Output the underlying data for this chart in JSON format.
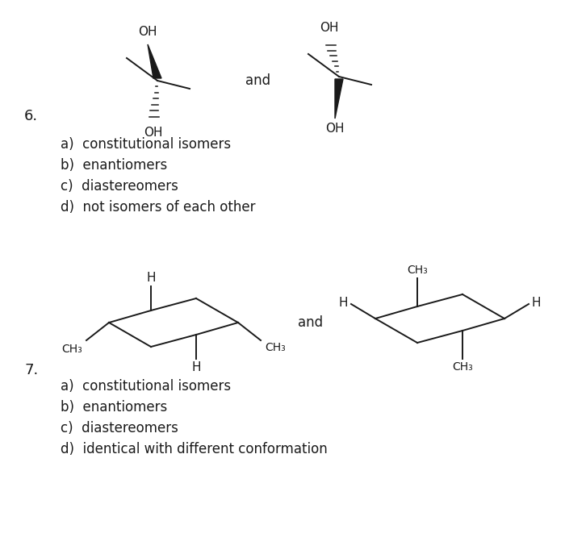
{
  "bg_color": "#ffffff",
  "text_color": "#1a1a1a",
  "question6_number": "6.",
  "question7_number": "7.",
  "and_text": "and",
  "q6_options": [
    "a)  constitutional isomers",
    "b)  enantiomers",
    "c)  diastereomers",
    "d)  not isomers of each other"
  ],
  "q7_options": [
    "a)  constitutional isomers",
    "b)  enantiomers",
    "c)  diastereomers",
    "d)  identical with different conformation"
  ],
  "font_size_options": 12,
  "font_size_labels": 11,
  "font_size_number": 13
}
